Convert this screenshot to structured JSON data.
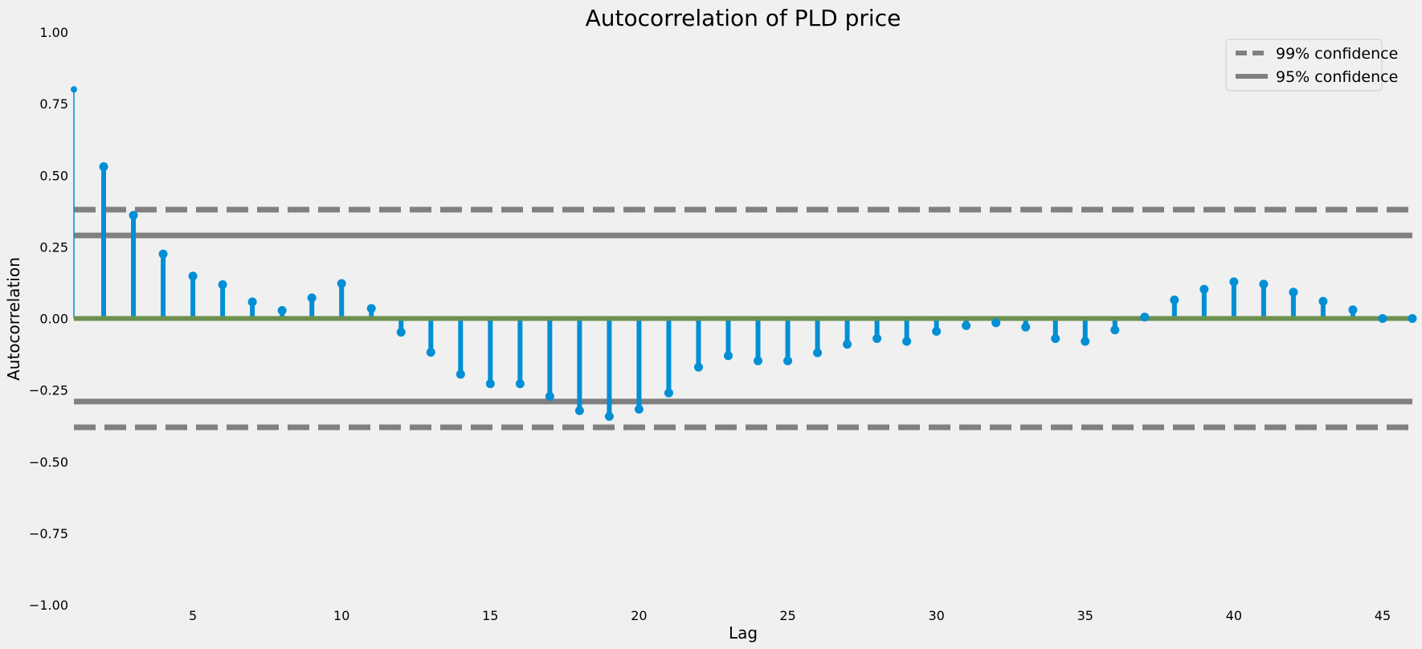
{
  "chart_data": {
    "type": "stem",
    "title": "Autocorrelation of PLD price",
    "xlabel": "Lag",
    "ylabel": "Autocorrelation",
    "xlim": [
      1,
      46
    ],
    "ylim": [
      -1.0,
      1.0
    ],
    "xticks": [
      5,
      10,
      15,
      20,
      25,
      30,
      35,
      40,
      45
    ],
    "yticks": [
      -1.0,
      -0.75,
      -0.5,
      -0.25,
      0.0,
      0.25,
      0.5,
      0.75,
      1.0
    ],
    "ytick_labels": [
      "−1.00",
      "−0.75",
      "−0.50",
      "−0.25",
      "0.00",
      "0.25",
      "0.50",
      "0.75",
      "1.00"
    ],
    "grid": false,
    "legend_position": "top-right",
    "lags": [
      1,
      2,
      3,
      4,
      5,
      6,
      7,
      8,
      9,
      10,
      11,
      12,
      13,
      14,
      15,
      16,
      17,
      18,
      19,
      20,
      21,
      22,
      23,
      24,
      25,
      26,
      27,
      28,
      29,
      30,
      31,
      32,
      33,
      34,
      35,
      36,
      37,
      38,
      39,
      40,
      41,
      42,
      43,
      44,
      45,
      46
    ],
    "values": [
      0.8,
      0.53,
      0.36,
      0.225,
      0.148,
      0.118,
      0.058,
      0.028,
      0.072,
      0.122,
      0.035,
      -0.048,
      -0.118,
      -0.195,
      -0.228,
      -0.228,
      -0.272,
      -0.322,
      -0.342,
      -0.317,
      -0.26,
      -0.17,
      -0.13,
      -0.148,
      -0.148,
      -0.12,
      -0.09,
      -0.07,
      -0.08,
      -0.045,
      -0.025,
      -0.015,
      -0.03,
      -0.07,
      -0.08,
      -0.04,
      0.005,
      0.065,
      0.102,
      0.128,
      0.12,
      0.092,
      0.06,
      0.03,
      0.0,
      0.0
    ],
    "confidence_lines": [
      {
        "name": "99% confidence",
        "value": 0.38,
        "style": "dashed"
      },
      {
        "name": "95% confidence",
        "value": 0.29,
        "style": "solid"
      }
    ],
    "colors": {
      "stem": "#008fd5",
      "confidence": "#808080",
      "zero_line": "#6d904f"
    }
  }
}
